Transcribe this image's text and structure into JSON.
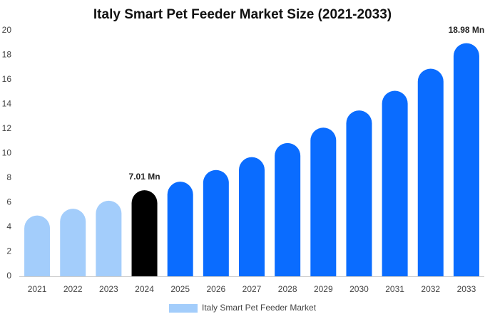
{
  "chart_data": {
    "type": "bar",
    "title": "Italy Smart Pet Feeder Market Size (2021-2033)",
    "categories": [
      "2021",
      "2022",
      "2023",
      "2024",
      "2025",
      "2026",
      "2027",
      "2028",
      "2029",
      "2030",
      "2031",
      "2032",
      "2033"
    ],
    "series": [
      {
        "name": "Italy Smart Pet Feeder Market",
        "color": "#a3cdfb",
        "colors": [
          "#a3cdfb",
          "#a3cdfb",
          "#a3cdfb",
          "#000000",
          "#0a6cff",
          "#0a6cff",
          "#0a6cff",
          "#0a6cff",
          "#0a6cff",
          "#0a6cff",
          "#0a6cff",
          "#0a6cff",
          "#0a6cff"
        ],
        "values": [
          4.95,
          5.5,
          6.15,
          7.01,
          7.7,
          8.65,
          9.7,
          10.85,
          12.1,
          13.5,
          15.1,
          16.9,
          18.98
        ],
        "value_labels": [
          null,
          null,
          null,
          "7.01 Mn",
          null,
          null,
          null,
          null,
          null,
          null,
          null,
          null,
          "18.98 Mn"
        ]
      }
    ],
    "ylim": [
      0,
      20
    ],
    "yticks": [
      0,
      2,
      4,
      6,
      8,
      10,
      12,
      14,
      16,
      18,
      20
    ],
    "legend": "bottom"
  }
}
